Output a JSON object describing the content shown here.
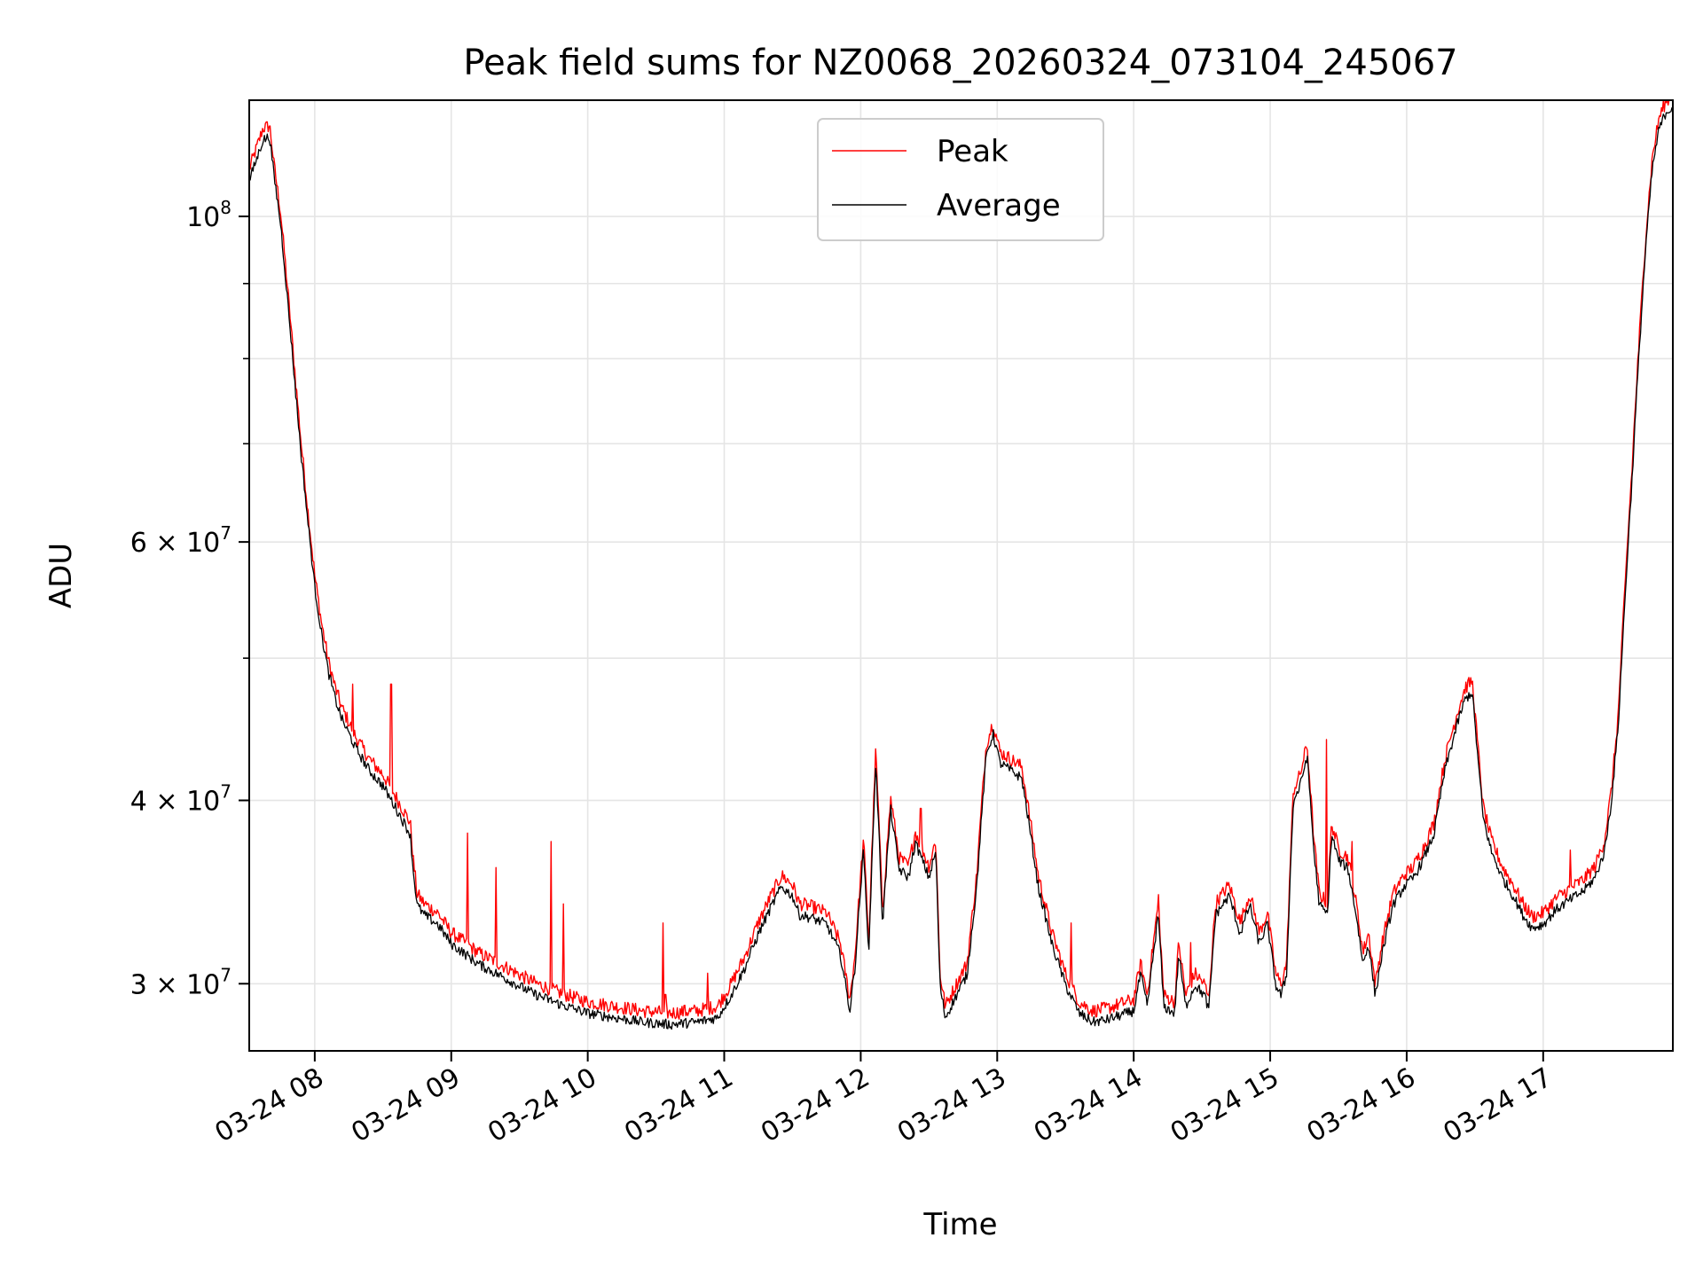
{
  "chart_data": {
    "type": "line",
    "title": "Peak field sums for NZ0068_20260324_073104_245067",
    "xlabel": "Time",
    "ylabel": "ADU",
    "yscale": "log",
    "xlim_hours": [
      7.52,
      17.95
    ],
    "ylim": [
      27000000,
      120000000
    ],
    "grid": true,
    "legend_position": "upper-center",
    "x_ticks": [
      {
        "label": "03-24 08",
        "hour": 8
      },
      {
        "label": "03-24 09",
        "hour": 9
      },
      {
        "label": "03-24 10",
        "hour": 10
      },
      {
        "label": "03-24 11",
        "hour": 11
      },
      {
        "label": "03-24 12",
        "hour": 12
      },
      {
        "label": "03-24 13",
        "hour": 13
      },
      {
        "label": "03-24 14",
        "hour": 14
      },
      {
        "label": "03-24 15",
        "hour": 15
      },
      {
        "label": "03-24 16",
        "hour": 16
      },
      {
        "label": "03-24 17",
        "hour": 17
      }
    ],
    "y_ticks": [
      {
        "mantissa": "",
        "base": "10",
        "exp": "8",
        "value": 100000000
      },
      {
        "mantissa": "6 × ",
        "base": "10",
        "exp": "7",
        "value": 60000000
      },
      {
        "mantissa": "4 × ",
        "base": "10",
        "exp": "7",
        "value": 40000000
      },
      {
        "mantissa": "3 × ",
        "base": "10",
        "exp": "7",
        "value": 30000000
      }
    ],
    "y_minor_ticks": [
      50000000,
      70000000,
      80000000,
      90000000
    ],
    "series": [
      {
        "name": "Peak",
        "color": "#ff0000",
        "spikes": [
          [
            8.08,
            48500000
          ],
          [
            8.28,
            48000000
          ],
          [
            8.56,
            48000000
          ],
          [
            9.12,
            38000000
          ],
          [
            9.33,
            36000000
          ],
          [
            9.73,
            37500000
          ],
          [
            9.82,
            34000000
          ],
          [
            10.55,
            33000000
          ],
          [
            10.57,
            29500000
          ],
          [
            10.71,
            29000000
          ],
          [
            10.88,
            30500000
          ],
          [
            12.44,
            39500000
          ],
          [
            13.54,
            33000000
          ],
          [
            14.18,
            34500000
          ],
          [
            14.42,
            32000000
          ],
          [
            15.41,
            44000000
          ],
          [
            15.6,
            37500000
          ],
          [
            16.28,
            38500000
          ],
          [
            17.2,
            37000000
          ]
        ]
      },
      {
        "name": "Average",
        "color": "#000000",
        "points": [
          [
            7.52,
            106000000
          ],
          [
            7.58,
            110000000
          ],
          [
            7.62,
            113000000
          ],
          [
            7.67,
            113500000
          ],
          [
            7.7,
            107000000
          ],
          [
            7.75,
            99000000
          ],
          [
            7.8,
            88000000
          ],
          [
            7.86,
            76000000
          ],
          [
            7.9,
            69000000
          ],
          [
            7.95,
            62000000
          ],
          [
            8.0,
            56000000
          ],
          [
            8.05,
            52000000
          ],
          [
            8.1,
            49000000
          ],
          [
            8.15,
            47000000
          ],
          [
            8.2,
            45500000
          ],
          [
            8.3,
            43500000
          ],
          [
            8.4,
            42000000
          ],
          [
            8.5,
            41000000
          ],
          [
            8.6,
            39500000
          ],
          [
            8.7,
            38000000
          ],
          [
            8.72,
            36000000
          ],
          [
            8.75,
            34000000
          ],
          [
            8.8,
            33500000
          ],
          [
            8.9,
            33000000
          ],
          [
            9.0,
            32000000
          ],
          [
            9.1,
            31500000
          ],
          [
            9.2,
            31000000
          ],
          [
            9.4,
            30300000
          ],
          [
            9.6,
            29600000
          ],
          [
            9.8,
            29100000
          ],
          [
            10.0,
            28700000
          ],
          [
            10.2,
            28500000
          ],
          [
            10.4,
            28300000
          ],
          [
            10.6,
            28200000
          ],
          [
            10.8,
            28300000
          ],
          [
            10.95,
            28500000
          ],
          [
            11.05,
            29500000
          ],
          [
            11.15,
            30800000
          ],
          [
            11.25,
            32500000
          ],
          [
            11.35,
            34000000
          ],
          [
            11.42,
            35000000
          ],
          [
            11.5,
            34500000
          ],
          [
            11.55,
            33500000
          ],
          [
            11.65,
            33300000
          ],
          [
            11.75,
            33000000
          ],
          [
            11.85,
            31500000
          ],
          [
            11.92,
            28800000
          ],
          [
            11.96,
            31000000
          ],
          [
            12.02,
            37000000
          ],
          [
            12.06,
            31500000
          ],
          [
            12.11,
            42500000
          ],
          [
            12.16,
            33000000
          ],
          [
            12.22,
            39500000
          ],
          [
            12.28,
            36000000
          ],
          [
            12.35,
            35500000
          ],
          [
            12.4,
            37500000
          ],
          [
            12.45,
            36500000
          ],
          [
            12.5,
            35500000
          ],
          [
            12.55,
            37000000
          ],
          [
            12.58,
            30000000
          ],
          [
            12.62,
            28500000
          ],
          [
            12.7,
            29500000
          ],
          [
            12.78,
            30500000
          ],
          [
            12.85,
            35000000
          ],
          [
            12.92,
            43000000
          ],
          [
            12.97,
            44500000
          ],
          [
            13.02,
            42500000
          ],
          [
            13.1,
            42000000
          ],
          [
            13.18,
            41500000
          ],
          [
            13.3,
            35000000
          ],
          [
            13.4,
            32000000
          ],
          [
            13.5,
            30000000
          ],
          [
            13.6,
            28700000
          ],
          [
            13.7,
            28300000
          ],
          [
            13.8,
            28400000
          ],
          [
            13.9,
            28600000
          ],
          [
            14.0,
            28800000
          ],
          [
            14.05,
            30500000
          ],
          [
            14.1,
            29000000
          ],
          [
            14.18,
            33500000
          ],
          [
            14.22,
            29000000
          ],
          [
            14.3,
            28700000
          ],
          [
            14.33,
            31500000
          ],
          [
            14.38,
            29000000
          ],
          [
            14.45,
            30000000
          ],
          [
            14.52,
            29500000
          ],
          [
            14.55,
            28800000
          ],
          [
            14.6,
            33500000
          ],
          [
            14.7,
            34500000
          ],
          [
            14.78,
            32500000
          ],
          [
            14.85,
            34000000
          ],
          [
            14.92,
            32000000
          ],
          [
            14.98,
            33000000
          ],
          [
            15.04,
            30000000
          ],
          [
            15.08,
            29500000
          ],
          [
            15.12,
            30500000
          ],
          [
            15.17,
            40000000
          ],
          [
            15.22,
            41000000
          ],
          [
            15.27,
            43000000
          ],
          [
            15.32,
            37000000
          ],
          [
            15.36,
            34000000
          ],
          [
            15.42,
            33500000
          ],
          [
            15.45,
            38000000
          ],
          [
            15.5,
            36500000
          ],
          [
            15.57,
            36000000
          ],
          [
            15.63,
            33500000
          ],
          [
            15.68,
            31000000
          ],
          [
            15.72,
            32000000
          ],
          [
            15.77,
            29500000
          ],
          [
            15.82,
            31500000
          ],
          [
            15.9,
            34000000
          ],
          [
            15.98,
            35000000
          ],
          [
            16.05,
            35500000
          ],
          [
            16.12,
            36500000
          ],
          [
            16.2,
            38000000
          ],
          [
            16.28,
            42000000
          ],
          [
            16.38,
            45500000
          ],
          [
            16.43,
            47000000
          ],
          [
            16.48,
            47500000
          ],
          [
            16.52,
            43000000
          ],
          [
            16.56,
            39000000
          ],
          [
            16.62,
            37000000
          ],
          [
            16.7,
            35500000
          ],
          [
            16.78,
            34500000
          ],
          [
            16.85,
            33500000
          ],
          [
            16.92,
            32800000
          ],
          [
            17.0,
            33000000
          ],
          [
            17.1,
            33800000
          ],
          [
            17.2,
            34300000
          ],
          [
            17.3,
            34800000
          ],
          [
            17.38,
            35500000
          ],
          [
            17.45,
            37000000
          ],
          [
            17.5,
            40000000
          ],
          [
            17.55,
            45000000
          ],
          [
            17.6,
            55000000
          ],
          [
            17.65,
            66000000
          ],
          [
            17.7,
            80000000
          ],
          [
            17.75,
            95000000
          ],
          [
            17.8,
            108000000
          ],
          [
            17.85,
            115000000
          ],
          [
            17.9,
            118000000
          ],
          [
            17.95,
            119000000
          ]
        ]
      }
    ]
  }
}
